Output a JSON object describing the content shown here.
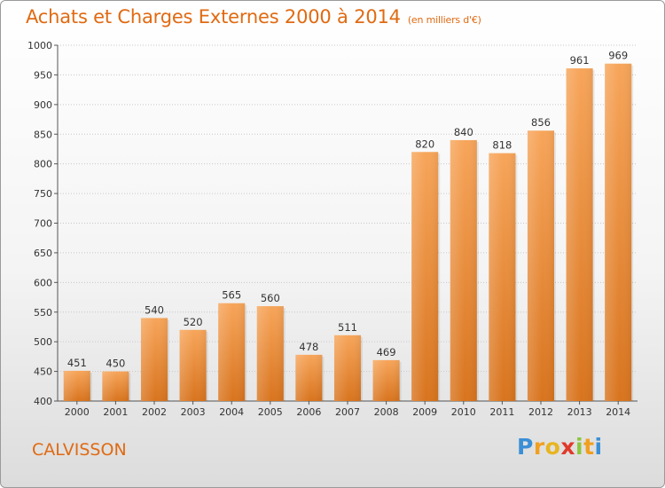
{
  "header": {
    "title": "Achats et Charges Externes 2000 à 2014",
    "subtitle": "(en milliers d'€)"
  },
  "footer": {
    "commune": "CALVISSON",
    "logo": {
      "letters": [
        "P",
        "r",
        "o",
        "x",
        "i",
        "t",
        "i"
      ],
      "colors": [
        "#3a8fd6",
        "#f0a020",
        "#e8b520",
        "#e03a2a",
        "#8cc63f",
        "#f0a020",
        "#3a8fd6"
      ]
    }
  },
  "chart_data": {
    "type": "bar",
    "categories": [
      "2000",
      "2001",
      "2002",
      "2003",
      "2004",
      "2005",
      "2006",
      "2007",
      "2008",
      "2009",
      "2010",
      "2011",
      "2012",
      "2013",
      "2014"
    ],
    "values": [
      451,
      450,
      540,
      520,
      565,
      560,
      478,
      511,
      469,
      820,
      840,
      818,
      856,
      961,
      969
    ],
    "ylim": [
      400,
      1000
    ],
    "yticks": [
      400,
      450,
      500,
      550,
      600,
      650,
      700,
      750,
      800,
      850,
      900,
      950,
      1000
    ],
    "grid": true,
    "bar_color_top": "#f7a55a",
    "bar_color_bottom": "#d8741e"
  }
}
